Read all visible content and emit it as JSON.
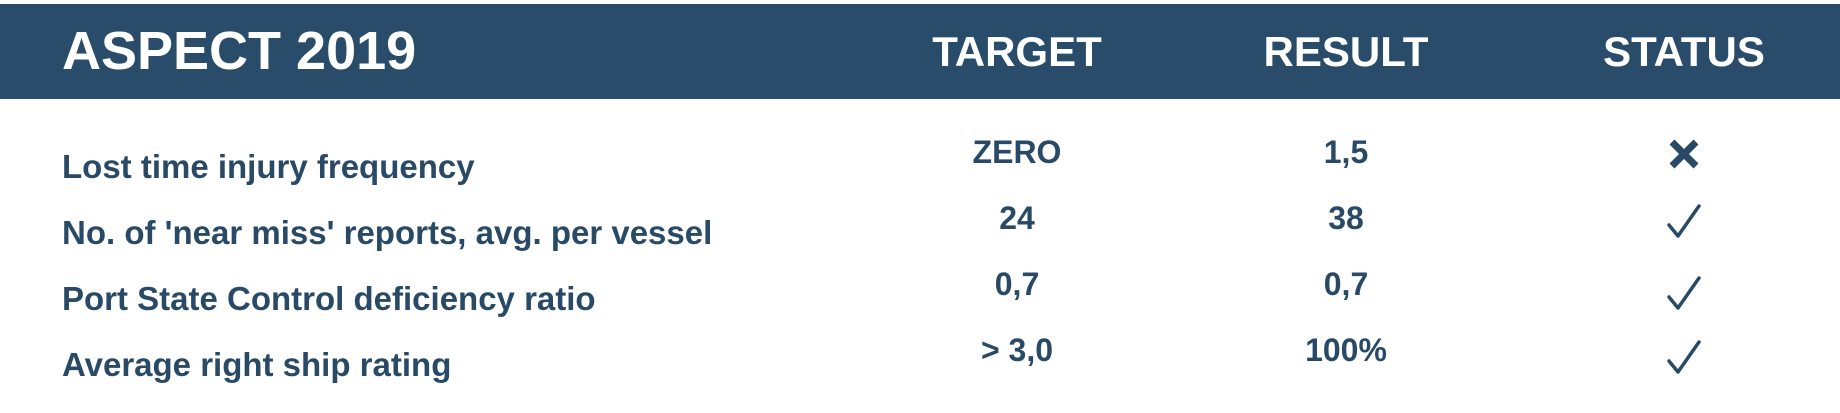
{
  "header": {
    "aspect": "ASPECT 2019",
    "target": "TARGET",
    "result": "RESULT",
    "status": "STATUS"
  },
  "rows": [
    {
      "label": "Lost time injury frequency",
      "target": "ZERO",
      "result": "1,5",
      "status_icon": "cross-icon"
    },
    {
      "label": "No. of 'near miss' reports, avg. per vessel",
      "target": "24",
      "result": "38",
      "status_icon": "check-icon"
    },
    {
      "label": "Port State Control deficiency ratio",
      "target": "0,7",
      "result": "0,7",
      "status_icon": "check-icon"
    },
    {
      "label": "Average right ship rating",
      "target": "> 3,0",
      "result": "100%",
      "status_icon": "check-icon"
    }
  ],
  "colors": {
    "header_background": "#284c69",
    "header_text": "#ffffff",
    "body_text": "#294a66"
  }
}
